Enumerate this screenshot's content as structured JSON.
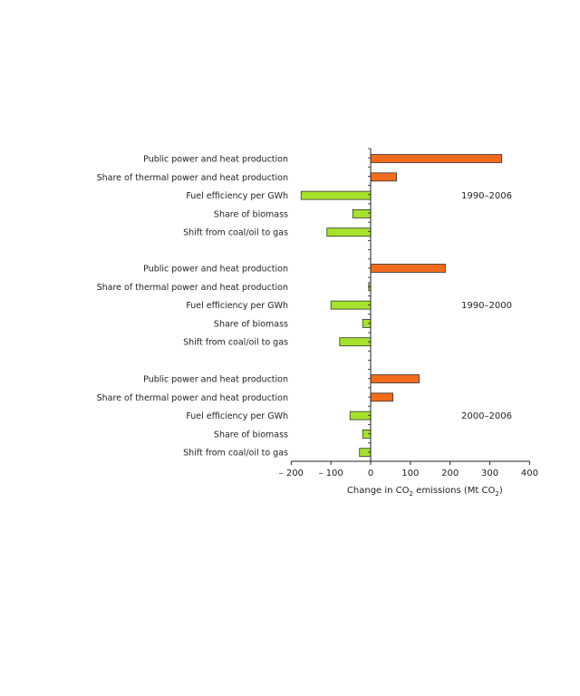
{
  "chart_data": {
    "type": "bar",
    "orientation": "horizontal",
    "xlabel_main": "Change in CO",
    "xlabel_sub": "2",
    "xlabel_mid": " emissions (Mt CO",
    "xlabel_sub2": "2",
    "xlabel_end": ")",
    "xlim": [
      -200,
      400
    ],
    "xticks": [
      -200,
      -100,
      0,
      100,
      200,
      300,
      400
    ],
    "xtick_labels": [
      "– 200",
      "– 100",
      "0",
      "100",
      "200",
      "300",
      "400"
    ],
    "grid": false,
    "colors": {
      "positive": "#f26b1d",
      "negative": "#a6e22e",
      "stroke": "#333333"
    },
    "groups": [
      {
        "name": "1990–2006",
        "categories": [
          "Public power and heat production",
          "Share of thermal power and heat production",
          "Fuel efficiency per GWh",
          "Share of biomass",
          "Shift from coal/oil to gas"
        ],
        "values": [
          330,
          65,
          -175,
          -45,
          -110
        ]
      },
      {
        "name": "1990–2000",
        "categories": [
          "Public power and heat production",
          "Share of thermal power and heat production",
          "Fuel efficiency per GWh",
          "Share of biomass",
          "Shift from coal/oil to gas"
        ],
        "values": [
          188,
          -5,
          -100,
          -20,
          -78
        ]
      },
      {
        "name": "2000–2006",
        "categories": [
          "Public power and heat production",
          "Share of thermal power and heat production",
          "Fuel efficiency per GWh",
          "Share of biomass",
          "Shift from coal/oil to gas"
        ],
        "values": [
          122,
          56,
          -52,
          -20,
          -28
        ]
      }
    ]
  }
}
